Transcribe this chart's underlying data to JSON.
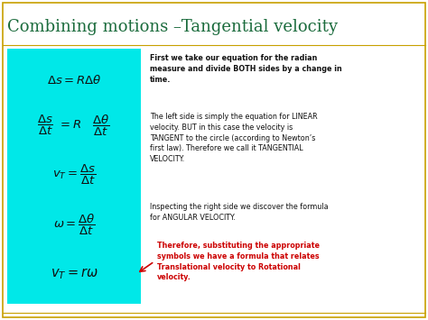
{
  "title": "Combining motions –Tangential velocity",
  "title_fontsize": 13,
  "title_color": "#1a6b3c",
  "bg_color": "#ffffff",
  "border_color": "#c8a000",
  "cyan_box_color": "#00e8e8",
  "eq1": "$\\Delta s = R\\Delta\\theta$",
  "eq2_left": "$\\dfrac{\\Delta s}{\\Delta t}$",
  "eq2_mid": "$= R$",
  "eq2_right": "$\\dfrac{\\Delta\\theta}{\\Delta t}$",
  "eq3": "$v_T = \\dfrac{\\Delta s}{\\Delta t}$",
  "eq4": "$\\omega = \\dfrac{\\Delta\\theta}{\\Delta t}$",
  "eq5": "$v_T = r\\omega$",
  "text_color": "#111111",
  "red_color": "#cc0000",
  "eq_color": "#111111"
}
